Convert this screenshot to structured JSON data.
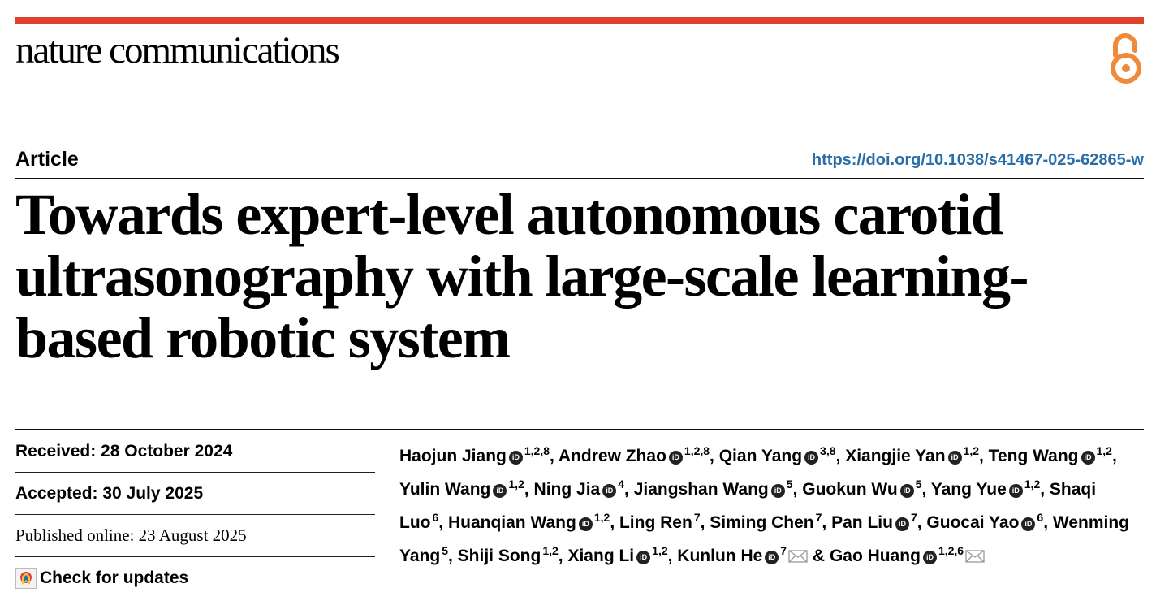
{
  "colors": {
    "accent_bar": "#e0412f",
    "doi_link": "#2a6ea8",
    "open_access": "#ef8a3a"
  },
  "header": {
    "journal": "nature communications",
    "open_access_icon": "open-access-lock-icon"
  },
  "meta": {
    "type": "Article",
    "doi": "https://doi.org/10.1038/s41467-025-62865-w"
  },
  "title": "Towards expert-level autonomous carotid ultrasonography with large-scale learning-based robotic system",
  "dates": {
    "received": "Received: 28 October 2024",
    "accepted": "Accepted: 30 July 2025",
    "published": "Published online: 23 August 2025",
    "check_updates": "Check for updates"
  },
  "authors": [
    {
      "name": "Haojun Jiang",
      "orcid": true,
      "aff": "1,2,8"
    },
    {
      "name": "Andrew Zhao",
      "orcid": true,
      "aff": "1,2,8"
    },
    {
      "name": "Qian Yang",
      "orcid": true,
      "aff": "3,8"
    },
    {
      "name": "Xiangjie Yan",
      "orcid": true,
      "aff": "1,2"
    },
    {
      "name": "Teng Wang",
      "orcid": true,
      "aff": "1,2"
    },
    {
      "name": "Yulin Wang",
      "orcid": true,
      "aff": "1,2"
    },
    {
      "name": "Ning Jia",
      "orcid": true,
      "aff": "4"
    },
    {
      "name": "Jiangshan Wang",
      "orcid": true,
      "aff": "5"
    },
    {
      "name": "Guokun Wu",
      "orcid": true,
      "aff": "5"
    },
    {
      "name": "Yang Yue",
      "orcid": true,
      "aff": "1,2"
    },
    {
      "name": "Shaqi Luo",
      "orcid": false,
      "aff": "6"
    },
    {
      "name": "Huanqian Wang",
      "orcid": true,
      "aff": "1,2"
    },
    {
      "name": "Ling Ren",
      "orcid": false,
      "aff": "7"
    },
    {
      "name": "Siming Chen",
      "orcid": false,
      "aff": "7"
    },
    {
      "name": "Pan Liu",
      "orcid": true,
      "aff": "7"
    },
    {
      "name": "Guocai Yao",
      "orcid": true,
      "aff": "6"
    },
    {
      "name": "Wenming Yang",
      "orcid": false,
      "aff": "5"
    },
    {
      "name": "Shiji Song",
      "orcid": false,
      "aff": "1,2"
    },
    {
      "name": "Xiang Li",
      "orcid": true,
      "aff": "1,2"
    },
    {
      "name": "Kunlun He",
      "orcid": true,
      "aff": "7",
      "email": true
    },
    {
      "name": "Gao Huang",
      "orcid": true,
      "aff": "1,2,6",
      "email": true
    }
  ],
  "author_separators": {
    "comma": ", ",
    "and": " & "
  },
  "orcid_icon_text": "iD"
}
